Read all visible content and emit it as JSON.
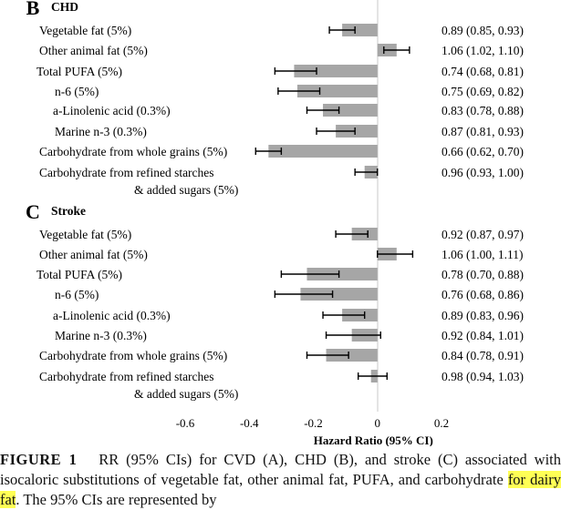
{
  "chart_data": [
    {
      "type": "bar",
      "orientation": "horizontal",
      "panel_letter": "B",
      "title": "CHD",
      "xlabel": "Hazard Ratio (95% CI)",
      "xlim": [
        -0.6,
        0.2
      ],
      "xticks": [
        "-0.6",
        "-0.4",
        "-0.2",
        "0",
        "0.2"
      ],
      "bar_color": "#a6a6a6",
      "rows": [
        {
          "label": [
            "Vegetable fat (5%)"
          ],
          "value": -0.11,
          "err_low": -0.15,
          "err_high": -0.07,
          "ci_text": "0.89 (0.85, 0.93)"
        },
        {
          "label": [
            "Other animal fat (5%)"
          ],
          "value": 0.06,
          "err_low": 0.02,
          "err_high": 0.1,
          "ci_text": "1.06 (1.02, 1.10)"
        },
        {
          "label": [
            "Total PUFA (5%)"
          ],
          "value": -0.26,
          "err_low": -0.32,
          "err_high": -0.19,
          "ci_text": "0.74 (0.68, 0.81)"
        },
        {
          "label": [
            "n-6 (5%)"
          ],
          "value": -0.25,
          "err_low": -0.31,
          "err_high": -0.18,
          "ci_text": "0.75 (0.69, 0.82)"
        },
        {
          "label": [
            "a-Linolenic acid (0.3%)"
          ],
          "value": -0.17,
          "err_low": -0.22,
          "err_high": -0.12,
          "ci_text": "0.83 (0.78, 0.88)"
        },
        {
          "label": [
            "Marine n-3 (0.3%)"
          ],
          "value": -0.13,
          "err_low": -0.19,
          "err_high": -0.07,
          "ci_text": "0.87 (0.81, 0.93)"
        },
        {
          "label": [
            "Carbohydrate from whole grains (5%)"
          ],
          "value": -0.34,
          "err_low": -0.38,
          "err_high": -0.3,
          "ci_text": "0.66 (0.62, 0.70)"
        },
        {
          "label": [
            "Carbohydrate from refined starches",
            "& added sugars (5%)"
          ],
          "value": -0.04,
          "err_low": -0.07,
          "err_high": 0.0,
          "ci_text": "0.96 (0.93, 1.00)"
        }
      ]
    },
    {
      "type": "bar",
      "orientation": "horizontal",
      "panel_letter": "C",
      "title": "Stroke",
      "xlabel": "Hazard Ratio (95% CI)",
      "xlim": [
        -0.6,
        0.2
      ],
      "xticks": [
        "-0.6",
        "-0.4",
        "-0.2",
        "0",
        "0.2"
      ],
      "bar_color": "#a6a6a6",
      "rows": [
        {
          "label": [
            "Vegetable fat (5%)"
          ],
          "value": -0.08,
          "err_low": -0.13,
          "err_high": -0.03,
          "ci_text": "0.92 (0.87, 0.97)"
        },
        {
          "label": [
            "Other animal fat (5%)"
          ],
          "value": 0.06,
          "err_low": 0.0,
          "err_high": 0.11,
          "ci_text": "1.06 (1.00, 1.11)"
        },
        {
          "label": [
            "Total PUFA (5%)"
          ],
          "value": -0.22,
          "err_low": -0.3,
          "err_high": -0.12,
          "ci_text": "0.78 (0.70, 0.88)"
        },
        {
          "label": [
            "n-6 (5%)"
          ],
          "value": -0.24,
          "err_low": -0.32,
          "err_high": -0.14,
          "ci_text": "0.76 (0.68, 0.86)"
        },
        {
          "label": [
            "a-Linolenic acid  (0.3%)"
          ],
          "value": -0.11,
          "err_low": -0.17,
          "err_high": -0.04,
          "ci_text": "0.89 (0.83, 0.96)"
        },
        {
          "label": [
            "Marine n-3 (0.3%)"
          ],
          "value": -0.08,
          "err_low": -0.16,
          "err_high": 0.01,
          "ci_text": "0.92 (0.84, 1.01)"
        },
        {
          "label": [
            "Carbohydrate from whole grains (5%)"
          ],
          "value": -0.16,
          "err_low": -0.22,
          "err_high": -0.09,
          "ci_text": "0.84 (0.78, 0.91)"
        },
        {
          "label": [
            "Carbohydrate from refined starches",
            "& added sugars (5%)"
          ],
          "value": -0.02,
          "err_low": -0.06,
          "err_high": 0.03,
          "ci_text": "0.98 (0.94, 1.03)"
        }
      ]
    }
  ],
  "caption": {
    "label": "FIGURE 1",
    "text_before": "RR (95% CIs) for CVD (A), CHD (B), and stroke (C) associated with isocaloric substitutions of vegetable fat, other animal fat, PUFA, and carbohydrate ",
    "highlight": "for dairy fat",
    "text_after": ". The 95% CIs are represented by"
  }
}
